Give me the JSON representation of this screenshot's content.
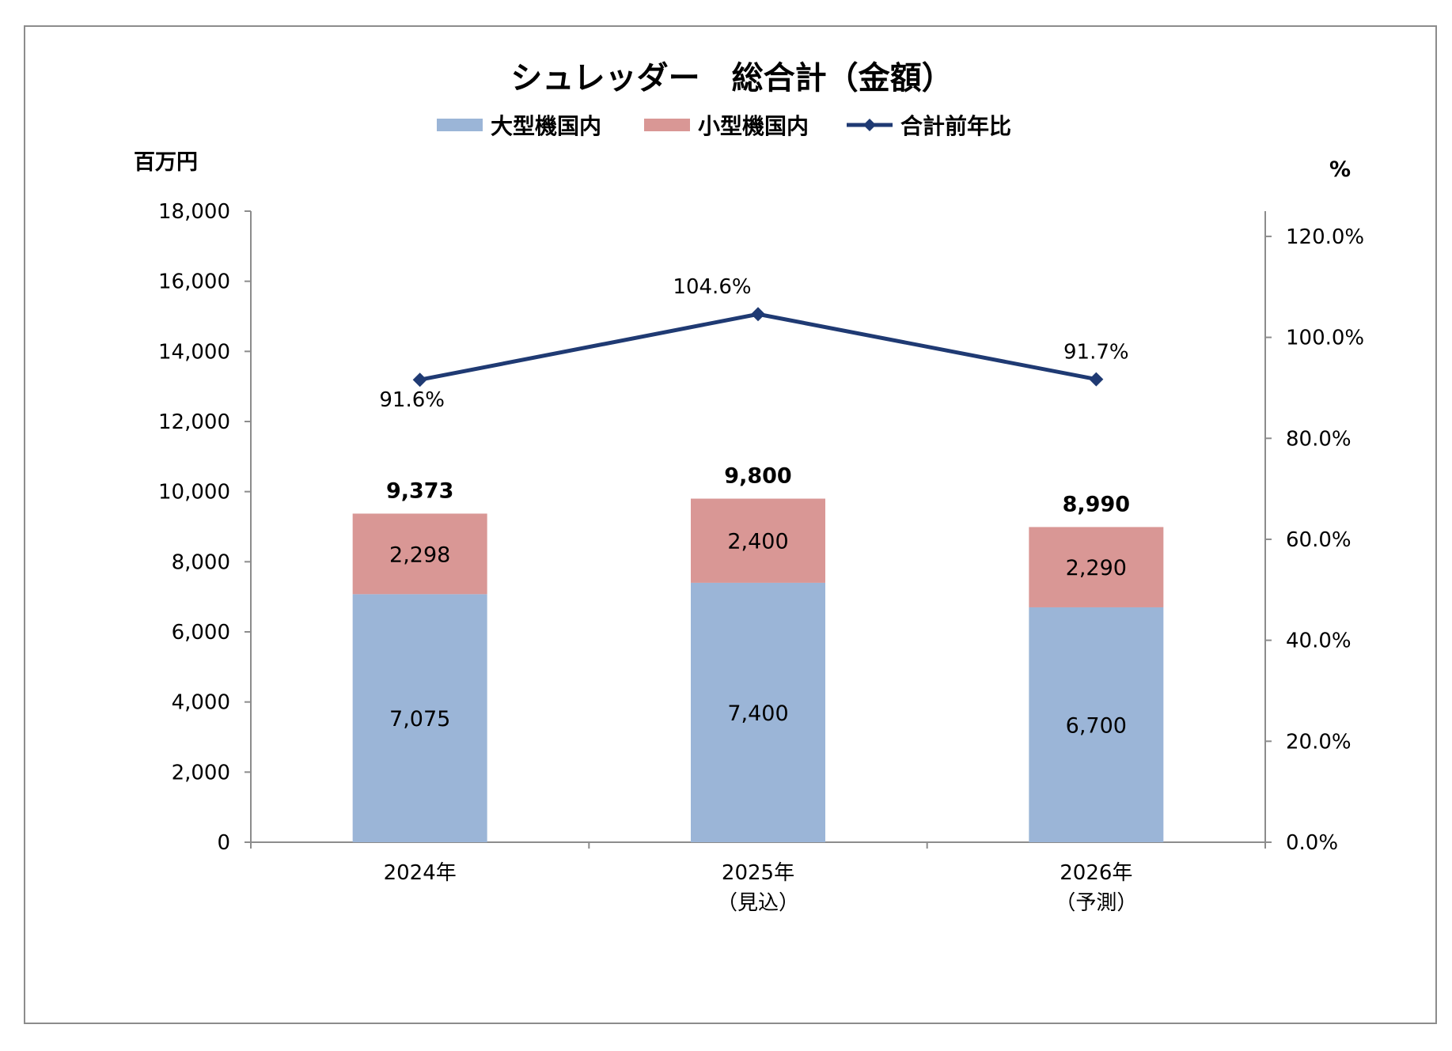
{
  "chart_data": {
    "type": "bar",
    "stacked": true,
    "title": "シュレッダー　総合計（金額）",
    "y_unit_label": "百万円",
    "y2_unit_label": "%",
    "categories": [
      [
        "2024年"
      ],
      [
        "2025年",
        "（見込）"
      ],
      [
        "2026年",
        "（予測）"
      ]
    ],
    "ylim": [
      0,
      18000
    ],
    "yticks": [
      0,
      2000,
      4000,
      6000,
      8000,
      10000,
      12000,
      14000,
      16000,
      18000
    ],
    "ytick_labels": [
      "0",
      "2,000",
      "4,000",
      "6,000",
      "8,000",
      "10,000",
      "12,000",
      "14,000",
      "16,000",
      "18,000"
    ],
    "y2lim": [
      0,
      125
    ],
    "y2ticks": [
      0,
      20,
      40,
      60,
      80,
      100,
      120
    ],
    "y2tick_labels": [
      "0.0%",
      "20.0%",
      "40.0%",
      "60.0%",
      "80.0%",
      "100.0%",
      "120.0%"
    ],
    "series": [
      {
        "name": "大型機国内",
        "kind": "bar",
        "color": "#9bb5d7",
        "values": [
          7075,
          7400,
          6700
        ],
        "labels": [
          "7,075",
          "7,400",
          "6,700"
        ]
      },
      {
        "name": "小型機国内",
        "kind": "bar",
        "color": "#d99795",
        "values": [
          2298,
          2400,
          2290
        ],
        "labels": [
          "2,298",
          "2,400",
          "2,290"
        ]
      },
      {
        "name": "合計前年比",
        "kind": "line",
        "axis": "secondary",
        "color": "#1f3a73",
        "values": [
          91.6,
          104.6,
          91.7
        ],
        "labels": [
          "91.6%",
          "104.6%",
          "91.7%"
        ]
      }
    ],
    "totals": [
      9373,
      9800,
      8990
    ],
    "total_labels": [
      "9,373",
      "9,800",
      "8,990"
    ],
    "legend_position": "top-center",
    "grid": false
  }
}
